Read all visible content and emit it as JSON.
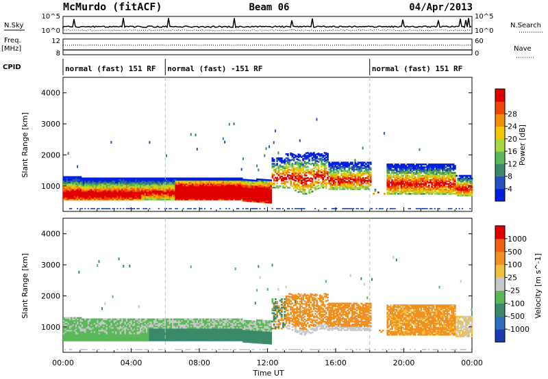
{
  "header": {
    "station": "McMurdo (fitACF)",
    "beam": "Beam 06",
    "date": "04/Apr/2013"
  },
  "status_panel": {
    "n_sky_label": "N.Sky",
    "n_search_label": "N.Search",
    "freq_label_line1": "Freq.",
    "freq_label_line2": "[MHz]",
    "nave_label": "Nave",
    "cpid_label": "CPID",
    "noise_ticks_left": [
      "10^5",
      "10^0"
    ],
    "noise_ticks_right": [
      "10^5",
      "10^0"
    ],
    "freq_ticks": [
      "12",
      "8"
    ],
    "nave_ticks": [
      "60",
      "0"
    ]
  },
  "cpid_segments": [
    {
      "label": "normal (fast) 151 RF",
      "start_h": 0,
      "end_h": 6
    },
    {
      "label": "normal (fast) -151 RF",
      "start_h": 6,
      "end_h": 18
    },
    {
      "label": "normal (fast) 151 RF",
      "start_h": 18,
      "end_h": 24
    }
  ],
  "chart_data": [
    {
      "type": "heatmap",
      "name": "Power",
      "ylabel": "Slant Range [km]",
      "y_ticks": [
        1000,
        2000,
        3000,
        4000
      ],
      "ylim": [
        180,
        4500
      ],
      "xlim": [
        0,
        24
      ],
      "colorbar_label": "Power [dB]",
      "colorbar_ticks": [
        "4",
        "8",
        "12",
        "16",
        "20",
        "24",
        "28"
      ],
      "colorbar_colors": [
        "#0020e0",
        "#2850c0",
        "#3a8a6a",
        "#5ab85a",
        "#a8d840",
        "#f0c800",
        "#f09000",
        "#f04800",
        "#e00000"
      ]
    },
    {
      "type": "heatmap",
      "name": "Velocity",
      "ylabel": "Slant Range [km]",
      "xlabel": "Time UT",
      "y_ticks": [
        1000,
        2000,
        3000,
        4000
      ],
      "ylim": [
        180,
        4500
      ],
      "xlim": [
        0,
        24
      ],
      "x_ticks": [
        "00:00",
        "04:00",
        "08:00",
        "12:00",
        "16:00",
        "20:00",
        "00:00"
      ],
      "colorbar_label": "Velocity [m s^-1]",
      "colorbar_ticks": [
        "1000",
        "500",
        "100",
        "25",
        "-25",
        "-100",
        "-500",
        "-1000"
      ],
      "colorbar_colors": [
        "#1a3ab0",
        "#2f6fc0",
        "#3a8a6a",
        "#5ab85a",
        "#c8c8c8",
        "#f0c040",
        "#f09020",
        "#f06010",
        "#e00000"
      ]
    }
  ]
}
